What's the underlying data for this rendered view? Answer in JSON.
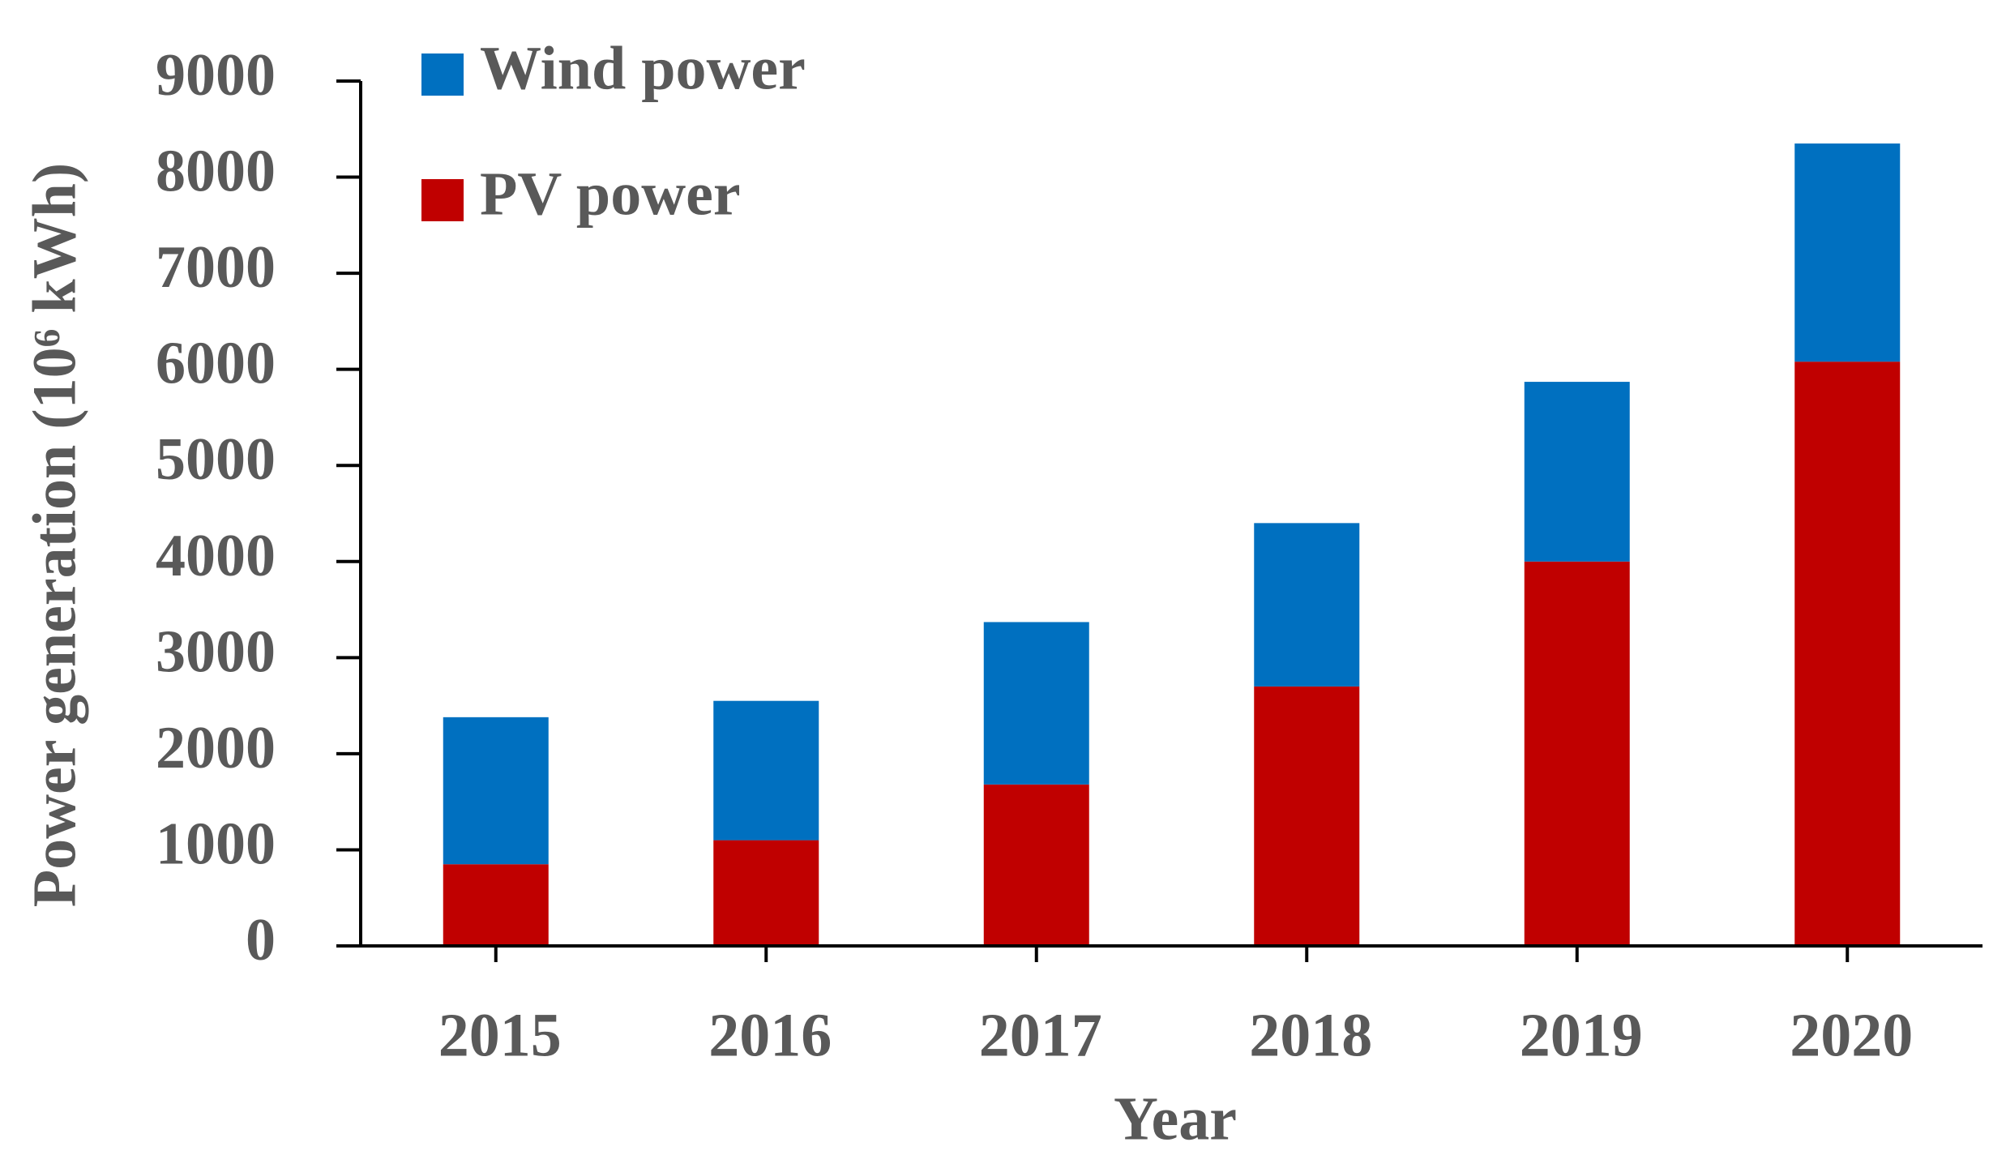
{
  "chart_data": {
    "type": "stacked-bar",
    "x_label": "Year",
    "y_label": "Power generation (10⁶ kWh)",
    "categories": [
      "2015",
      "2016",
      "2017",
      "2018",
      "2019",
      "2020"
    ],
    "series": [
      {
        "name": "PV power",
        "color": "#c00000",
        "values": [
          850,
          1100,
          1680,
          2700,
          4000,
          6080
        ]
      },
      {
        "name": "Wind power",
        "color": "#0070c0",
        "values": [
          1530,
          1450,
          1690,
          1700,
          1870,
          2270
        ]
      }
    ],
    "ylim": [
      0,
      9000
    ],
    "yticks": [
      0,
      1000,
      2000,
      3000,
      4000,
      5000,
      6000,
      7000,
      8000,
      9000
    ],
    "grid": false,
    "legend": "top-left"
  }
}
